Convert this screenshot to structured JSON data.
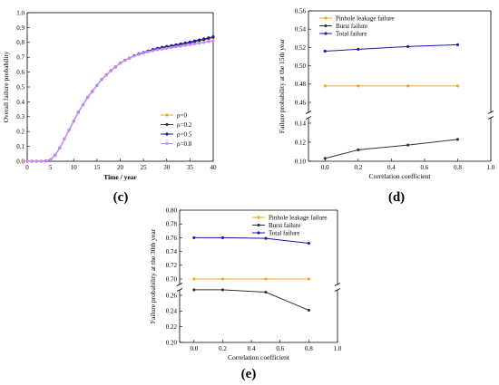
{
  "chart_data": [
    {
      "id": "c",
      "panel_label": "(c)",
      "type": "line",
      "xlabel": "Time / year",
      "ylabel": "Overall failure probability",
      "xlim": [
        0,
        40
      ],
      "ylim": [
        0,
        1.0
      ],
      "xticks": [
        "0",
        "5",
        "10",
        "15",
        "20",
        "25",
        "30",
        "35",
        "40"
      ],
      "yticks": [
        "0.0",
        "0.1",
        "0.2",
        "0.3",
        "0.4",
        "0.5",
        "0.6",
        "0.7",
        "0.8",
        "0.9",
        "1.0"
      ],
      "legend_position": "bottom-right",
      "x": [
        0,
        1,
        2,
        3,
        4,
        5,
        6,
        7,
        8,
        9,
        10,
        11,
        12,
        13,
        14,
        15,
        16,
        17,
        18,
        19,
        20,
        21,
        22,
        23,
        24,
        25,
        26,
        27,
        28,
        29,
        30,
        31,
        32,
        33,
        34,
        35,
        36,
        37,
        38,
        39,
        40
      ],
      "series": [
        {
          "name": "ρ=0",
          "color": "#f5a623",
          "values": [
            0,
            0,
            0,
            0,
            0.002,
            0.01,
            0.04,
            0.09,
            0.15,
            0.21,
            0.27,
            0.33,
            0.38,
            0.43,
            0.47,
            0.51,
            0.55,
            0.58,
            0.61,
            0.635,
            0.66,
            0.68,
            0.695,
            0.71,
            0.72,
            0.73,
            0.74,
            0.75,
            0.755,
            0.76,
            0.765,
            0.77,
            0.775,
            0.78,
            0.785,
            0.79,
            0.8,
            0.81,
            0.815,
            0.82,
            0.83
          ]
        },
        {
          "name": "ρ=0.2",
          "color": "#333333",
          "values": [
            0,
            0,
            0,
            0,
            0.002,
            0.01,
            0.04,
            0.09,
            0.15,
            0.21,
            0.27,
            0.33,
            0.38,
            0.43,
            0.47,
            0.51,
            0.55,
            0.58,
            0.61,
            0.635,
            0.66,
            0.68,
            0.695,
            0.71,
            0.72,
            0.73,
            0.74,
            0.75,
            0.758,
            0.764,
            0.77,
            0.775,
            0.78,
            0.786,
            0.792,
            0.798,
            0.805,
            0.812,
            0.82,
            0.828,
            0.835
          ]
        },
        {
          "name": "ρ=0.5",
          "color": "#1a1aa6",
          "values": [
            0,
            0,
            0,
            0,
            0.002,
            0.01,
            0.04,
            0.09,
            0.15,
            0.21,
            0.27,
            0.33,
            0.38,
            0.43,
            0.47,
            0.51,
            0.55,
            0.58,
            0.61,
            0.635,
            0.66,
            0.68,
            0.695,
            0.71,
            0.722,
            0.732,
            0.742,
            0.752,
            0.76,
            0.767,
            0.773,
            0.778,
            0.784,
            0.79,
            0.796,
            0.803,
            0.81,
            0.817,
            0.824,
            0.831,
            0.838
          ]
        },
        {
          "name": "ρ=0.8",
          "color": "#c58bf0",
          "values": [
            0,
            0,
            0,
            0,
            0.002,
            0.01,
            0.04,
            0.09,
            0.15,
            0.21,
            0.27,
            0.33,
            0.38,
            0.43,
            0.47,
            0.51,
            0.55,
            0.58,
            0.61,
            0.635,
            0.66,
            0.68,
            0.695,
            0.708,
            0.718,
            0.728,
            0.736,
            0.744,
            0.75,
            0.755,
            0.76,
            0.765,
            0.77,
            0.775,
            0.78,
            0.785,
            0.79,
            0.795,
            0.8,
            0.805,
            0.81
          ]
        }
      ]
    },
    {
      "id": "d",
      "panel_label": "(d)",
      "type": "line",
      "xlabel": "Correlation coefficient",
      "ylabel": "Failure probability at the 15th year",
      "xlim": [
        -0.1,
        1.0
      ],
      "xticks": [
        "0.0",
        "0.2",
        "0.4",
        "0.6",
        "0.8",
        "1.0"
      ],
      "yticks_lower": [
        "0.10",
        "0.12",
        "0.14"
      ],
      "yticks_upper": [
        "0.46",
        "0.48",
        "0.50",
        "0.52",
        "0.54",
        "0.56"
      ],
      "axis_break": true,
      "legend_position": "top-left",
      "x": [
        0,
        0.2,
        0.5,
        0.8
      ],
      "series": [
        {
          "name": "Pinhole leakage failure",
          "color": "#f5a623",
          "values": [
            0.478,
            0.478,
            0.478,
            0.478
          ]
        },
        {
          "name": "Burst failure",
          "color": "#333333",
          "values": [
            0.103,
            0.112,
            0.117,
            0.123
          ]
        },
        {
          "name": "Total failure",
          "color": "#1a1aa6",
          "values": [
            0.516,
            0.518,
            0.521,
            0.523
          ]
        }
      ]
    },
    {
      "id": "e",
      "panel_label": "(e)",
      "type": "line",
      "xlabel": "Correlation coefficient",
      "ylabel": "Failure probability at the 30th year",
      "xlim": [
        -0.1,
        1.0
      ],
      "xticks": [
        "0.0",
        "0.2",
        "0.4",
        "0.6",
        "0.8",
        "1.0"
      ],
      "yticks_lower": [
        "0.20",
        "0.22",
        "0.24",
        "0.26"
      ],
      "yticks_upper": [
        "0.70",
        "0.72",
        "0.74",
        "0.76",
        "0.78",
        "0.80"
      ],
      "axis_break": true,
      "legend_position": "top-right",
      "x": [
        0,
        0.2,
        0.5,
        0.8
      ],
      "series": [
        {
          "name": "Pinhole leakage failure",
          "color": "#f5a623",
          "values": [
            0.7,
            0.7,
            0.7,
            0.7
          ]
        },
        {
          "name": "Burst failure",
          "color": "#333333",
          "values": [
            0.267,
            0.267,
            0.264,
            0.241
          ]
        },
        {
          "name": "Total failure",
          "color": "#1a1aa6",
          "values": [
            0.76,
            0.76,
            0.759,
            0.752
          ]
        }
      ]
    }
  ]
}
